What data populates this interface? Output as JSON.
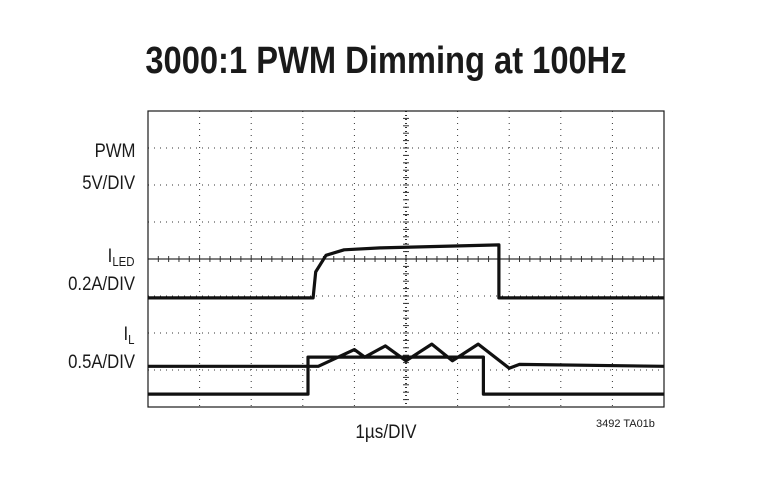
{
  "chart_data": {
    "type": "line",
    "title": "3000:1 PWM Dimming at 100Hz",
    "xlabel": "1µs/DIV",
    "figure_id": "3492 TA01b",
    "grid": true,
    "divisions": {
      "x": 10,
      "y": 8
    },
    "channels": [
      {
        "name": "PWM",
        "scale": "5V/DIV",
        "points": [
          [
            0,
            7.65
          ],
          [
            3.1,
            7.65
          ],
          [
            3.1,
            6.65
          ],
          [
            6.5,
            6.65
          ],
          [
            6.5,
            7.65
          ],
          [
            10,
            7.65
          ]
        ]
      },
      {
        "name_main": "I",
        "name_sub": "LED",
        "scale": "0.2A/DIV",
        "points": [
          [
            0,
            5.05
          ],
          [
            3.2,
            5.05
          ],
          [
            3.25,
            4.35
          ],
          [
            3.45,
            3.9
          ],
          [
            3.8,
            3.75
          ],
          [
            4.5,
            3.7
          ],
          [
            6.8,
            3.62
          ],
          [
            6.8,
            5.05
          ],
          [
            10,
            5.05
          ]
        ]
      },
      {
        "name_main": "I",
        "name_sub": "L",
        "scale": "0.5A/DIV",
        "points": [
          [
            0,
            6.9
          ],
          [
            3.3,
            6.9
          ],
          [
            4.0,
            6.45
          ],
          [
            4.2,
            6.65
          ],
          [
            4.6,
            6.35
          ],
          [
            5.0,
            6.75
          ],
          [
            5.5,
            6.3
          ],
          [
            5.9,
            6.75
          ],
          [
            6.4,
            6.3
          ],
          [
            7.0,
            6.95
          ],
          [
            7.2,
            6.85
          ],
          [
            10,
            6.9
          ]
        ]
      }
    ]
  }
}
